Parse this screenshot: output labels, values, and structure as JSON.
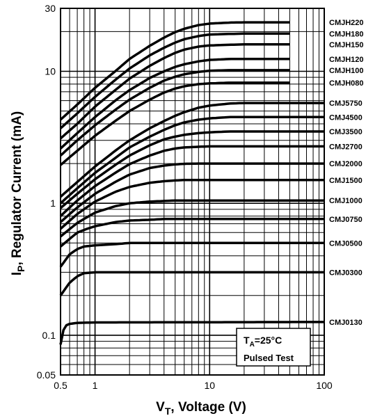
{
  "chart_data": {
    "type": "line",
    "xlabel": {
      "main": "V",
      "sub": "T",
      "rest": ", Voltage (V)"
    },
    "ylabel": {
      "main": "I",
      "sub": "P",
      "rest": ", Regulator Current (mA)"
    },
    "xscale": "log",
    "yscale": "log",
    "xlim": [
      0.5,
      100
    ],
    "ylim": [
      0.05,
      30
    ],
    "xticks": [
      {
        "value": 0.5,
        "label": "0.5"
      },
      {
        "value": 1,
        "label": "1"
      },
      {
        "value": 10,
        "label": "10"
      },
      {
        "value": 100,
        "label": "100"
      }
    ],
    "yticks": [
      {
        "value": 0.05,
        "label": "0.05"
      },
      {
        "value": 0.1,
        "label": "0.1"
      },
      {
        "value": 1,
        "label": "1"
      },
      {
        "value": 10,
        "label": "10"
      },
      {
        "value": 30,
        "label": "30"
      }
    ],
    "grid": true,
    "legend": "labels at right end of each curve",
    "annotation": {
      "line1": {
        "main": "T",
        "sub": "A",
        "rest": "=25°C"
      },
      "line2": "Pulsed Test"
    },
    "series": [
      {
        "name": "CMJH220",
        "points": [
          [
            0.5,
            4.3
          ],
          [
            0.7,
            5.6
          ],
          [
            1,
            7.5
          ],
          [
            1.5,
            10
          ],
          [
            2,
            12.4
          ],
          [
            3,
            15.6
          ],
          [
            4,
            18
          ],
          [
            5,
            19.8
          ],
          [
            6,
            21
          ],
          [
            8,
            22.4
          ],
          [
            10,
            23
          ],
          [
            15,
            23.4
          ],
          [
            20,
            23.5
          ],
          [
            50,
            23.5
          ]
        ]
      },
      {
        "name": "CMJH180",
        "points": [
          [
            0.5,
            3.7
          ],
          [
            0.7,
            4.8
          ],
          [
            1,
            6.4
          ],
          [
            1.5,
            8.6
          ],
          [
            2,
            10.5
          ],
          [
            3,
            13.2
          ],
          [
            4,
            15.1
          ],
          [
            5,
            16.5
          ],
          [
            6,
            17.5
          ],
          [
            8,
            18.5
          ],
          [
            10,
            19
          ],
          [
            15,
            19.2
          ],
          [
            20,
            19.3
          ],
          [
            50,
            19.3
          ]
        ]
      },
      {
        "name": "CMJH150",
        "points": [
          [
            0.5,
            3.1
          ],
          [
            0.7,
            4
          ],
          [
            1,
            5.4
          ],
          [
            1.5,
            7.2
          ],
          [
            2,
            8.8
          ],
          [
            3,
            11
          ],
          [
            4,
            12.6
          ],
          [
            5,
            13.8
          ],
          [
            6,
            14.6
          ],
          [
            8,
            15.4
          ],
          [
            10,
            15.7
          ],
          [
            15,
            15.9
          ],
          [
            20,
            16
          ],
          [
            50,
            16
          ]
        ]
      },
      {
        "name": "CMJH120",
        "points": [
          [
            0.5,
            2.6
          ],
          [
            0.7,
            3.4
          ],
          [
            1,
            4.5
          ],
          [
            1.5,
            6
          ],
          [
            2,
            7.2
          ],
          [
            3,
            8.9
          ],
          [
            4,
            10
          ],
          [
            5,
            10.8
          ],
          [
            6,
            11.3
          ],
          [
            8,
            11.9
          ],
          [
            10,
            12.2
          ],
          [
            15,
            12.4
          ],
          [
            20,
            12.4
          ],
          [
            50,
            12.4
          ]
        ]
      },
      {
        "name": "CMJH100",
        "points": [
          [
            0.5,
            2.3
          ],
          [
            0.7,
            3
          ],
          [
            1,
            3.9
          ],
          [
            1.5,
            5.1
          ],
          [
            2,
            6.1
          ],
          [
            3,
            7.5
          ],
          [
            4,
            8.5
          ],
          [
            5,
            9.1
          ],
          [
            6,
            9.5
          ],
          [
            8,
            9.9
          ],
          [
            10,
            10.1
          ],
          [
            15,
            10.2
          ],
          [
            20,
            10.2
          ],
          [
            50,
            10.2
          ]
        ]
      },
      {
        "name": "CMJH080",
        "points": [
          [
            0.5,
            1.95
          ],
          [
            0.7,
            2.5
          ],
          [
            1,
            3.25
          ],
          [
            1.5,
            4.2
          ],
          [
            2,
            5
          ],
          [
            3,
            6.1
          ],
          [
            4,
            6.9
          ],
          [
            5,
            7.4
          ],
          [
            6,
            7.7
          ],
          [
            8,
            8
          ],
          [
            10,
            8.1
          ],
          [
            15,
            8.2
          ],
          [
            20,
            8.2
          ],
          [
            50,
            8.2
          ]
        ]
      },
      {
        "name": "CMJ5750",
        "points": [
          [
            0.5,
            1.12
          ],
          [
            0.7,
            1.45
          ],
          [
            1,
            1.9
          ],
          [
            1.5,
            2.5
          ],
          [
            2,
            3
          ],
          [
            3,
            3.7
          ],
          [
            4,
            4.2
          ],
          [
            5,
            4.6
          ],
          [
            6,
            4.9
          ],
          [
            8,
            5.3
          ],
          [
            10,
            5.5
          ],
          [
            15,
            5.7
          ],
          [
            20,
            5.75
          ],
          [
            100,
            5.75
          ]
        ]
      },
      {
        "name": "CMJ4500",
        "points": [
          [
            0.5,
            1
          ],
          [
            0.7,
            1.3
          ],
          [
            1,
            1.7
          ],
          [
            1.5,
            2.2
          ],
          [
            2,
            2.65
          ],
          [
            3,
            3.2
          ],
          [
            4,
            3.6
          ],
          [
            5,
            3.9
          ],
          [
            6,
            4.1
          ],
          [
            8,
            4.3
          ],
          [
            10,
            4.4
          ],
          [
            15,
            4.5
          ],
          [
            20,
            4.5
          ],
          [
            100,
            4.5
          ]
        ]
      },
      {
        "name": "CMJ3500",
        "points": [
          [
            0.5,
            0.92
          ],
          [
            0.7,
            1.18
          ],
          [
            1,
            1.52
          ],
          [
            1.5,
            1.95
          ],
          [
            2,
            2.3
          ],
          [
            3,
            2.75
          ],
          [
            4,
            3.05
          ],
          [
            5,
            3.2
          ],
          [
            6,
            3.3
          ],
          [
            8,
            3.4
          ],
          [
            10,
            3.45
          ],
          [
            15,
            3.5
          ],
          [
            100,
            3.5
          ]
        ]
      },
      {
        "name": "CMJ2700",
        "points": [
          [
            0.5,
            0.8
          ],
          [
            0.7,
            1.05
          ],
          [
            1,
            1.35
          ],
          [
            1.5,
            1.7
          ],
          [
            2,
            1.98
          ],
          [
            3,
            2.3
          ],
          [
            4,
            2.5
          ],
          [
            5,
            2.6
          ],
          [
            6,
            2.65
          ],
          [
            8,
            2.68
          ],
          [
            10,
            2.7
          ],
          [
            100,
            2.7
          ]
        ]
      },
      {
        "name": "CMJ2000",
        "points": [
          [
            0.5,
            0.72
          ],
          [
            0.7,
            0.93
          ],
          [
            1,
            1.18
          ],
          [
            1.5,
            1.45
          ],
          [
            2,
            1.65
          ],
          [
            3,
            1.85
          ],
          [
            4,
            1.93
          ],
          [
            5,
            1.97
          ],
          [
            6,
            1.99
          ],
          [
            8,
            2
          ],
          [
            100,
            2
          ]
        ]
      },
      {
        "name": "CMJ1500",
        "points": [
          [
            0.5,
            0.64
          ],
          [
            0.7,
            0.83
          ],
          [
            1,
            1.03
          ],
          [
            1.5,
            1.22
          ],
          [
            2,
            1.33
          ],
          [
            3,
            1.43
          ],
          [
            4,
            1.47
          ],
          [
            5,
            1.49
          ],
          [
            6,
            1.5
          ],
          [
            100,
            1.5
          ]
        ]
      },
      {
        "name": "CMJ1000",
        "points": [
          [
            0.5,
            0.56
          ],
          [
            0.7,
            0.71
          ],
          [
            1,
            0.85
          ],
          [
            1.5,
            0.95
          ],
          [
            2,
            1
          ],
          [
            3,
            1.03
          ],
          [
            4,
            1.04
          ],
          [
            5,
            1.05
          ],
          [
            100,
            1.05
          ]
        ]
      },
      {
        "name": "CMJ0750",
        "points": [
          [
            0.5,
            0.47
          ],
          [
            0.7,
            0.6
          ],
          [
            0.85,
            0.64
          ],
          [
            1,
            0.67
          ],
          [
            1.5,
            0.72
          ],
          [
            2,
            0.74
          ],
          [
            3,
            0.75
          ],
          [
            4,
            0.76
          ],
          [
            100,
            0.76
          ]
        ]
      },
      {
        "name": "CMJ0500",
        "points": [
          [
            0.5,
            0.33
          ],
          [
            0.6,
            0.41
          ],
          [
            0.7,
            0.45
          ],
          [
            0.8,
            0.47
          ],
          [
            1,
            0.48
          ],
          [
            1.5,
            0.49
          ],
          [
            2,
            0.5
          ],
          [
            100,
            0.5
          ]
        ]
      },
      {
        "name": "CMJ0300",
        "points": [
          [
            0.5,
            0.2
          ],
          [
            0.6,
            0.25
          ],
          [
            0.7,
            0.28
          ],
          [
            0.8,
            0.295
          ],
          [
            1,
            0.3
          ],
          [
            100,
            0.3
          ]
        ]
      },
      {
        "name": "CMJ0130",
        "points": [
          [
            0.5,
            0.085
          ],
          [
            0.52,
            0.105
          ],
          [
            0.55,
            0.118
          ],
          [
            0.6,
            0.122
          ],
          [
            0.7,
            0.124
          ],
          [
            1,
            0.125
          ],
          [
            100,
            0.126
          ]
        ]
      }
    ]
  }
}
